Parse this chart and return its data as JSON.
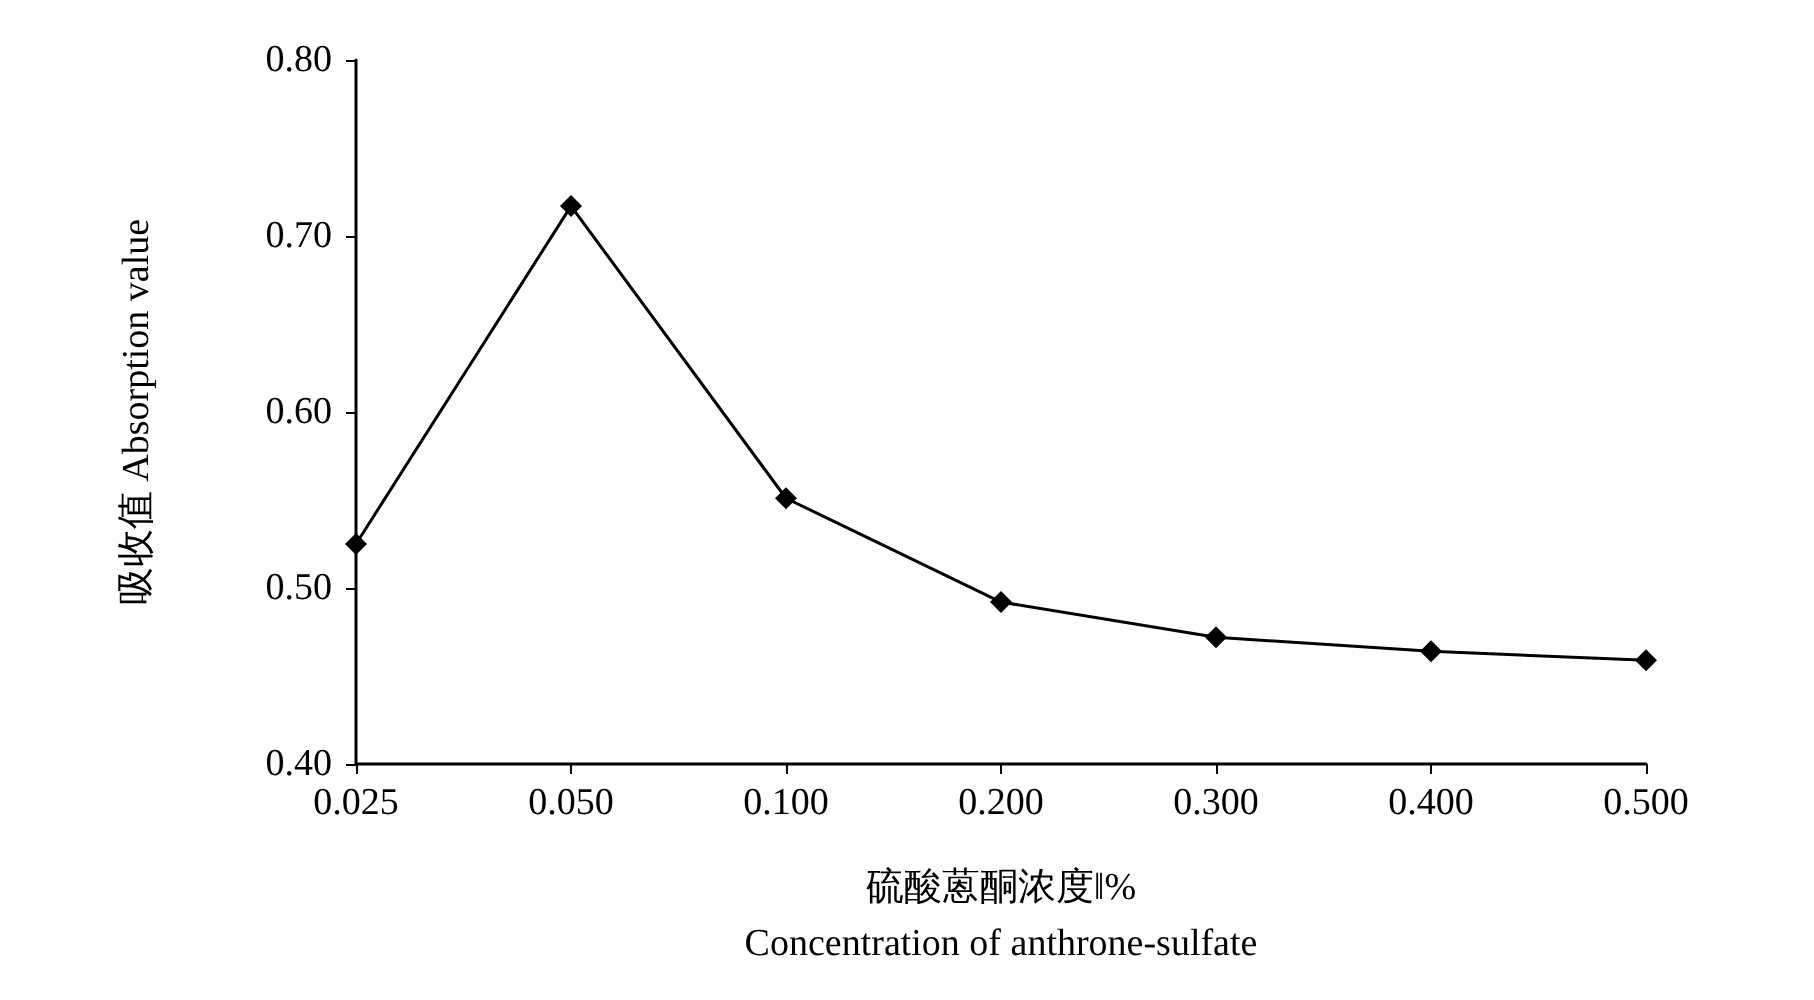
{
  "chart_data": {
    "type": "line",
    "xlabel": "硫酸蒽酮浓度‖%\nConcentration of anthrone-sulfate",
    "ylabel": "吸收值 Absorption value",
    "categories": [
      "0.025",
      "0.050",
      "0.100",
      "0.200",
      "0.300",
      "0.400",
      "0.500"
    ],
    "series": [
      {
        "color": "#000000",
        "values": [
          0.525,
          0.717,
          0.551,
          0.492,
          0.472,
          0.464,
          0.459
        ]
      }
    ],
    "ylim": [
      0.4,
      0.8
    ],
    "yticks": [
      {
        "value": 0.4,
        "label": "0.40"
      },
      {
        "value": 0.5,
        "label": "0.50"
      },
      {
        "value": 0.6,
        "label": "0.60"
      },
      {
        "value": 0.7,
        "label": "0.70"
      },
      {
        "value": 0.8,
        "label": "0.80"
      }
    ],
    "grid": false,
    "marker": "diamond",
    "line_style": "solid"
  }
}
